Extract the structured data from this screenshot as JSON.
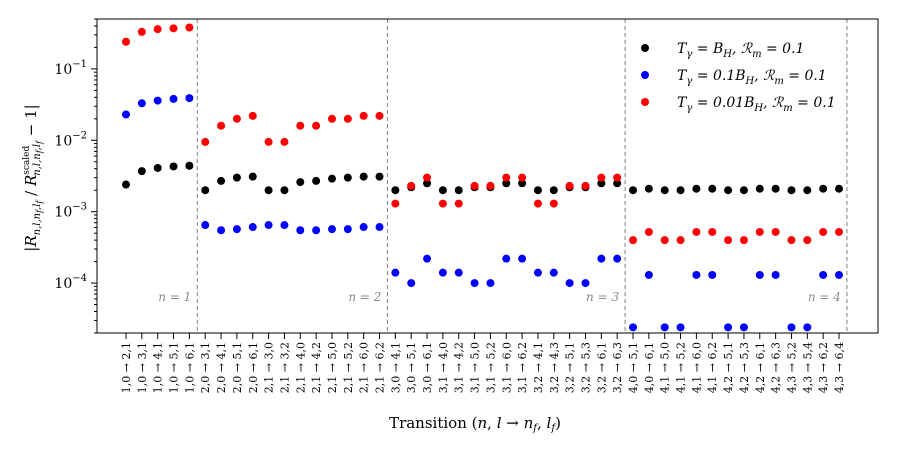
{
  "chart_data": {
    "type": "scatter",
    "xlabel": "Transition (n, l → n_f, l_f)",
    "ylabel": "|R_{n,l,n_f,l_f} / R^scaled_{n,l,n_f,l_f} − 1|",
    "yscale": "log",
    "ylim": [
      2e-05,
      0.5
    ],
    "yticks": [
      {
        "value": 0.1,
        "base": "10",
        "exp": "−1"
      },
      {
        "value": 0.01,
        "base": "10",
        "exp": "−2"
      },
      {
        "value": 0.001,
        "base": "10",
        "exp": "−3"
      },
      {
        "value": 0.0001,
        "base": "10",
        "exp": "−4"
      }
    ],
    "categories": [
      "1,0 → 2,1",
      "1,0 → 3,1",
      "1,0 → 4,1",
      "1,0 → 5,1",
      "1,0 → 6,1",
      "2,0 → 3,1",
      "2,0 → 4,1",
      "2,0 → 5,1",
      "2,0 → 6,1",
      "2,1 → 3,0",
      "2,1 → 3,2",
      "2,1 → 4,0",
      "2,1 → 4,2",
      "2,1 → 5,0",
      "2,1 → 5,2",
      "2,1 → 6,0",
      "2,1 → 6,2",
      "3,0 → 4,1",
      "3,0 → 5,1",
      "3,0 → 6,1",
      "3,1 → 4,0",
      "3,1 → 4,2",
      "3,1 → 5,0",
      "3,1 → 5,2",
      "3,1 → 6,0",
      "3,1 → 6,2",
      "3,2 → 4,1",
      "3,2 → 4,3",
      "3,2 → 5,1",
      "3,2 → 5,3",
      "3,2 → 6,1",
      "3,2 → 6,3",
      "4,0 → 5,1",
      "4,0 → 6,1",
      "4,1 → 5,0",
      "4,1 → 5,2",
      "4,1 → 6,0",
      "4,1 → 6,2",
      "4,2 → 5,1",
      "4,2 → 5,3",
      "4,2 → 6,1",
      "4,2 → 6,3",
      "4,3 → 5,2",
      "4,3 → 5,4",
      "4,3 → 6,2",
      "4,3 → 6,4"
    ],
    "regions": [
      {
        "label": "n = 1",
        "start": 0,
        "end": 4
      },
      {
        "label": "n = 2",
        "start": 5,
        "end": 16
      },
      {
        "label": "n = 3",
        "start": 17,
        "end": 31
      },
      {
        "label": "n = 4",
        "start": 32,
        "end": 45
      }
    ],
    "series": [
      {
        "name": "T_γ = B_H, R_m = 0.1",
        "legend": {
          "prefix": "γ",
          "value": "B",
          "sub": "H",
          "rm": "0.1"
        },
        "color": "#000000",
        "values": [
          0.0024,
          0.0037,
          0.0041,
          0.0043,
          0.0044,
          0.002,
          0.0027,
          0.003,
          0.0031,
          0.002,
          0.002,
          0.0026,
          0.0027,
          0.0029,
          0.003,
          0.0031,
          0.0031,
          0.002,
          0.0022,
          0.0025,
          0.002,
          0.002,
          0.0022,
          0.0022,
          0.0025,
          0.0025,
          0.002,
          0.002,
          0.0022,
          0.0022,
          0.0025,
          0.0025,
          0.002,
          0.0021,
          0.002,
          0.002,
          0.0021,
          0.0021,
          0.002,
          0.002,
          0.0021,
          0.0021,
          0.002,
          0.002,
          0.0021,
          0.0021
        ]
      },
      {
        "name": "T_γ = 0.1B_H, R_m = 0.1",
        "legend": {
          "prefix": "γ",
          "value": "0.1B",
          "sub": "H",
          "rm": "0.1"
        },
        "color": "#0000ff",
        "values": [
          0.023,
          0.033,
          0.036,
          0.038,
          0.039,
          0.00065,
          0.00055,
          0.00057,
          0.00061,
          0.00065,
          0.00065,
          0.00055,
          0.00055,
          0.00057,
          0.00057,
          0.00061,
          0.00061,
          0.00014,
          0.0001,
          0.00022,
          0.00014,
          0.00014,
          0.0001,
          0.0001,
          0.00022,
          0.00022,
          0.00014,
          0.00014,
          0.0001,
          0.0001,
          0.00022,
          0.00022,
          2.4e-05,
          0.00013,
          2.4e-05,
          2.4e-05,
          0.00013,
          0.00013,
          2.4e-05,
          2.4e-05,
          0.00013,
          0.00013,
          2.4e-05,
          2.4e-05,
          0.00013,
          0.00013
        ]
      },
      {
        "name": "T_γ = 0.01B_H, R_m = 0.1",
        "legend": {
          "prefix": "γ",
          "value": "0.01B",
          "sub": "H",
          "rm": "0.1"
        },
        "color": "#ff0000",
        "values": [
          0.24,
          0.33,
          0.36,
          0.37,
          0.38,
          0.0095,
          0.016,
          0.02,
          0.022,
          0.0095,
          0.0095,
          0.016,
          0.016,
          0.02,
          0.02,
          0.022,
          0.022,
          0.0013,
          0.0023,
          0.003,
          0.0013,
          0.0013,
          0.0023,
          0.0023,
          0.003,
          0.003,
          0.0013,
          0.0013,
          0.0023,
          0.0023,
          0.003,
          0.003,
          0.0004,
          0.00052,
          0.0004,
          0.0004,
          0.00052,
          0.00052,
          0.0004,
          0.0004,
          0.00052,
          0.00052,
          0.0004,
          0.0004,
          0.00052,
          0.00052
        ]
      }
    ],
    "legend_position": "top-right",
    "grid": false
  }
}
